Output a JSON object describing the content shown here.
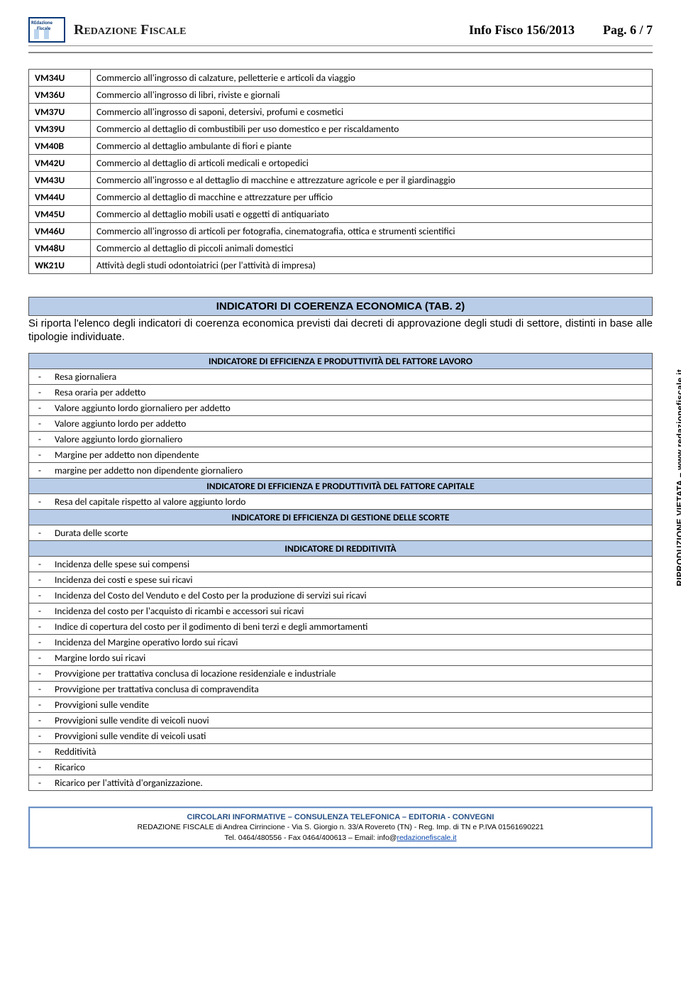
{
  "header": {
    "logo_line1": "REdazione",
    "logo_line2": "Fiscale",
    "brand": "Redazione Fiscale",
    "issue": "Info Fisco 156/2013",
    "page": "Pag. 6 / 7"
  },
  "codes_table": {
    "border_color": "#555555",
    "rows": [
      {
        "code": "VM34U",
        "desc": "Commercio all'ingrosso di calzature, pelletterie e articoli da viaggio"
      },
      {
        "code": "VM36U",
        "desc": "Commercio all'ingrosso di libri, riviste e giornali"
      },
      {
        "code": "VM37U",
        "desc": "Commercio all'ingrosso di saponi, detersivi, profumi e cosmetici"
      },
      {
        "code": "VM39U",
        "desc": "Commercio al dettaglio di combustibili per uso domestico e per riscaldamento"
      },
      {
        "code": "VM40B",
        "desc": "Commercio al dettaglio ambulante di fiori e piante"
      },
      {
        "code": "VM42U",
        "desc": "Commercio al dettaglio di articoli medicali e ortopedici"
      },
      {
        "code": "VM43U",
        "desc": "Commercio all'ingrosso e al dettaglio di macchine e attrezzature agricole e per il giardinaggio"
      },
      {
        "code": "VM44U",
        "desc": "Commercio al dettaglio di macchine e attrezzature per ufficio"
      },
      {
        "code": "VM45U",
        "desc": "Commercio al dettaglio mobili usati e oggetti di antiquariato"
      },
      {
        "code": "VM46U",
        "desc": "Commercio all'ingrosso di articoli per fotografia, cinematografia, ottica e strumenti scientifici"
      },
      {
        "code": "VM48U",
        "desc": "Commercio al dettaglio di piccoli animali domestici"
      },
      {
        "code": "WK21U",
        "desc": "Attività degli studi odontoiatrici (per l'attività di impresa)"
      }
    ]
  },
  "section": {
    "heading": "INDICATORI DI COERENZA ECONOMICA (TAB. 2)",
    "intro": "Si riporta l'elenco degli indicatori di coerenza economica previsti dai decreti di approvazione degli studi di settore, distinti in base alle tipologie individuate."
  },
  "ind_table": {
    "header_bg": "#b9cde8",
    "groups": [
      {
        "title": "INDICATORE DI EFFICIENZA E PRODUTTIVITÀ DEL FATTORE LAVORO",
        "items": [
          "Resa giornaliera",
          "Resa oraria per addetto",
          "Valore aggiunto lordo giornaliero per addetto",
          "Valore aggiunto lordo per addetto",
          "Valore aggiunto lordo giornaliero",
          "Margine per addetto non dipendente",
          "margine per addetto non dipendente giornaliero"
        ]
      },
      {
        "title": "INDICATORE DI EFFICIENZA E PRODUTTIVITÀ DEL FATTORE CAPITALE",
        "items": [
          "Resa del capitale rispetto al valore aggiunto lordo"
        ]
      },
      {
        "title": "INDICATORE DI EFFICIENZA DI GESTIONE DELLE SCORTE",
        "items": [
          "Durata delle scorte"
        ]
      },
      {
        "title": "INDICATORE DI REDDITIVITÀ",
        "items": [
          "Incidenza delle spese sui compensi",
          "Incidenza dei costi e spese sui ricavi",
          "Incidenza del Costo del Venduto e del Costo per la produzione di servizi sui ricavi",
          "Incidenza del costo per l'acquisto di ricambi e accessori sui ricavi",
          "Indice di copertura del costo per il godimento di beni terzi e degli ammortamenti",
          "Incidenza del Margine operativo lordo sui ricavi",
          "Margine lordo sui ricavi",
          "Provvigione per trattativa conclusa di locazione residenziale e industriale",
          "Provvigione per trattativa conclusa di compravendita",
          "Provvigioni sulle vendite",
          "Provvigioni sulle vendite di veicoli nuovi",
          "Provvigioni sulle vendite di veicoli usati",
          "Redditività",
          "Ricarico",
          "Ricarico per l'attività d'organizzazione."
        ]
      }
    ]
  },
  "side_text": "RIPRODUZIONE VIETATA – www.redazionefiscale.it",
  "footer": {
    "line1": "CIRCOLARI INFORMATIVE – CONSULENZA TELEFONICA – EDITORIA - CONVEGNI",
    "line2a": "REDAZIONE FISCALE di Andrea Cirrincione - Via S. Giorgio n. 33/A Rovereto (TN) - Reg. Imp. di TN e P.IVA 01561690221",
    "line3a": "Tel. 0464/480556 - Fax 0464/400613 – Email: info@",
    "line3b": "redazionefiscale.it"
  }
}
